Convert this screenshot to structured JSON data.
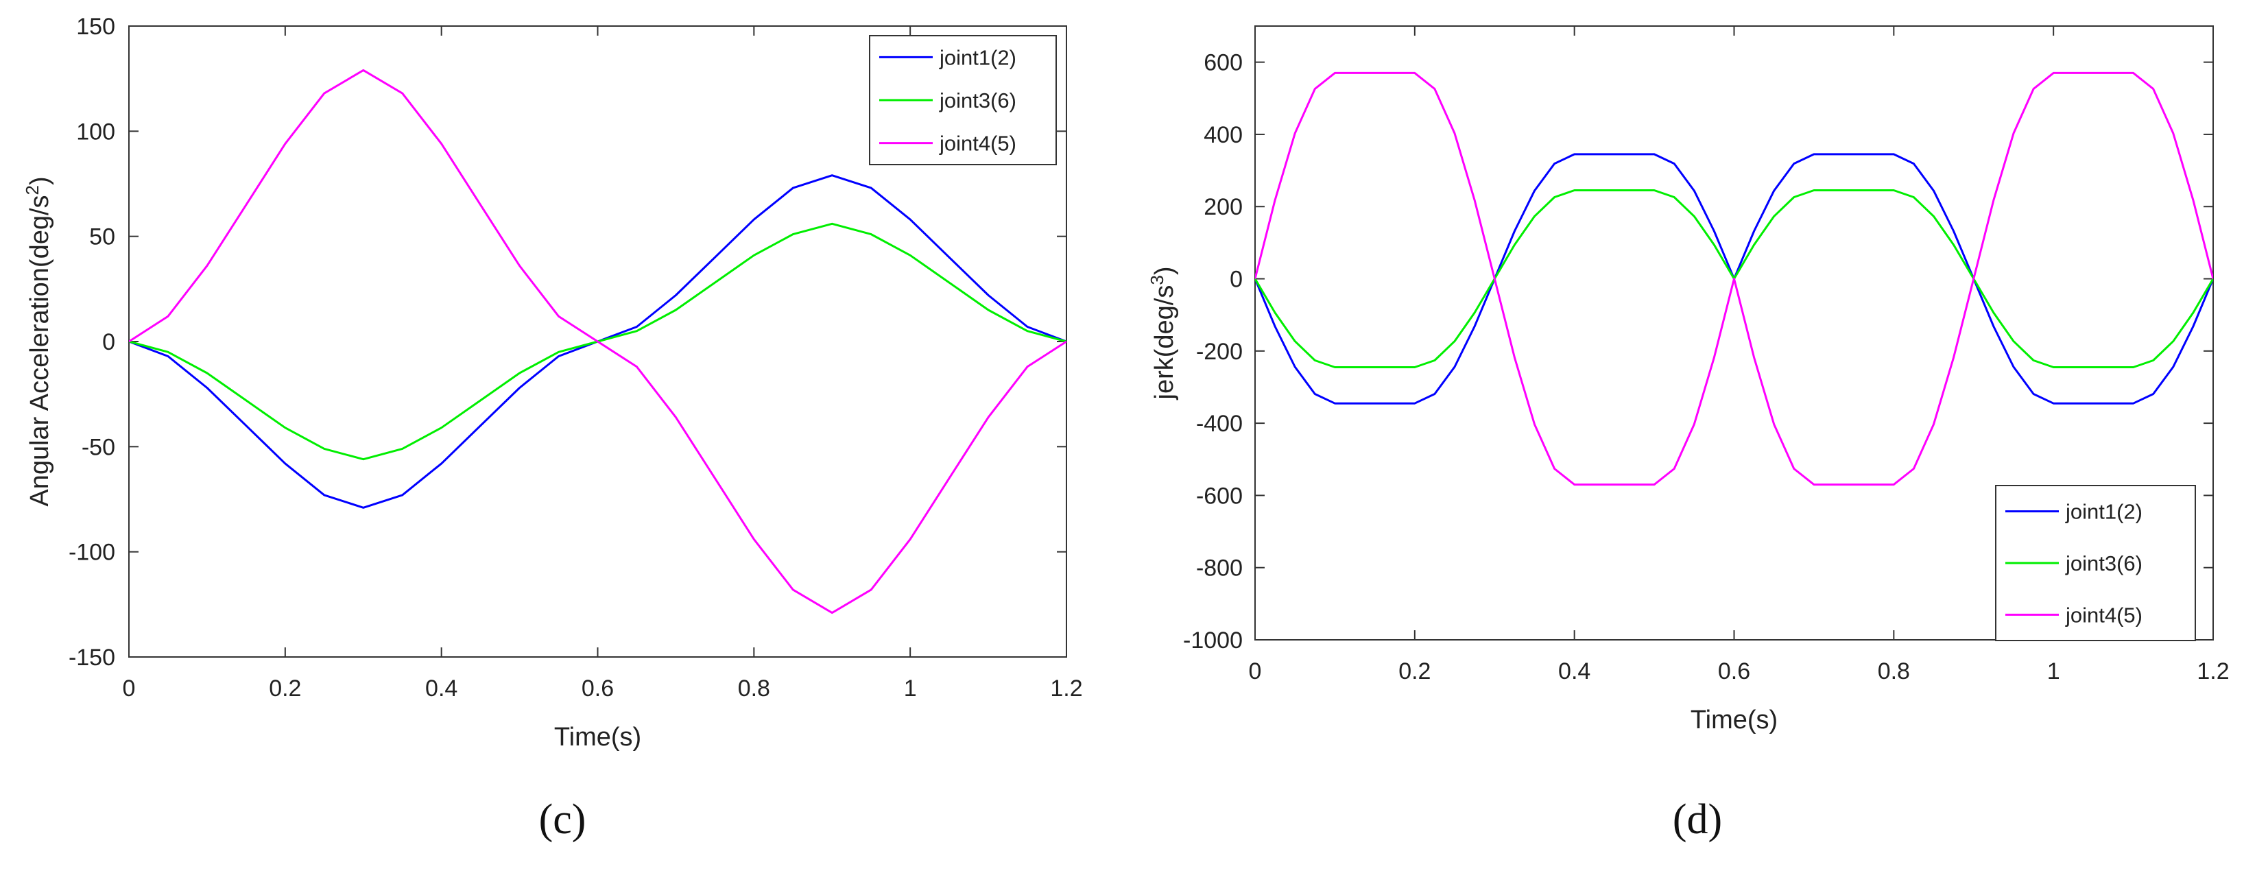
{
  "chart_data": [
    {
      "type": "line",
      "panel_label": "(c)",
      "title": "",
      "xlabel": "Time(s)",
      "ylabel": "Angular Acceleration(deg/s",
      "ylabel_sup": "2",
      "ylabel_tail": ")",
      "xlim": [
        0,
        1.2
      ],
      "ylim": [
        -150,
        150
      ],
      "xticks": [
        0,
        0.2,
        0.4,
        0.6,
        0.8,
        1,
        1.2
      ],
      "xtick_labels": [
        "0",
        "0.2",
        "0.4",
        "0.6",
        "0.8",
        "1",
        "1.2"
      ],
      "yticks": [
        -150,
        -100,
        -50,
        0,
        50,
        100,
        150
      ],
      "ytick_labels": [
        "-150",
        "-100",
        "-50",
        "0",
        "50",
        "100",
        "150"
      ],
      "grid": false,
      "legend_position": "top-right",
      "series": [
        {
          "name": "joint1(2)",
          "color": "#0000ff",
          "x": [
            0,
            0.05,
            0.1,
            0.15,
            0.2,
            0.25,
            0.3,
            0.35,
            0.4,
            0.45,
            0.5,
            0.55,
            0.6,
            0.65,
            0.7,
            0.75,
            0.8,
            0.85,
            0.9,
            0.95,
            1.0,
            1.05,
            1.1,
            1.15,
            1.2
          ],
          "values": [
            0,
            -7,
            -22,
            -40,
            -58,
            -73,
            -79,
            -73,
            -58,
            -40,
            -22,
            -7,
            0,
            7,
            22,
            40,
            58,
            73,
            79,
            73,
            58,
            40,
            22,
            7,
            0
          ]
        },
        {
          "name": "joint3(6)",
          "color": "#00ee00",
          "x": [
            0,
            0.05,
            0.1,
            0.15,
            0.2,
            0.25,
            0.3,
            0.35,
            0.4,
            0.45,
            0.5,
            0.55,
            0.6,
            0.65,
            0.7,
            0.75,
            0.8,
            0.85,
            0.9,
            0.95,
            1.0,
            1.05,
            1.1,
            1.15,
            1.2
          ],
          "values": [
            0,
            -5,
            -15,
            -28,
            -41,
            -51,
            -56,
            -51,
            -41,
            -28,
            -15,
            -5,
            0,
            5,
            15,
            28,
            41,
            51,
            56,
            51,
            41,
            28,
            15,
            5,
            0
          ]
        },
        {
          "name": "joint4(5)",
          "color": "#ff00ff",
          "x": [
            0,
            0.05,
            0.1,
            0.15,
            0.2,
            0.25,
            0.3,
            0.35,
            0.4,
            0.45,
            0.5,
            0.55,
            0.6,
            0.65,
            0.7,
            0.75,
            0.8,
            0.85,
            0.9,
            0.95,
            1.0,
            1.05,
            1.1,
            1.15,
            1.2
          ],
          "values": [
            0,
            12,
            36,
            65,
            94,
            118,
            129,
            118,
            94,
            65,
            36,
            12,
            0,
            -12,
            -36,
            -65,
            -94,
            -118,
            -129,
            -118,
            -94,
            -65,
            -36,
            -12,
            0
          ]
        }
      ]
    },
    {
      "type": "line",
      "panel_label": "(d)",
      "title": "",
      "xlabel": "Time(s)",
      "ylabel": "jerk(deg/s",
      "ylabel_sup": "3",
      "ylabel_tail": ")",
      "xlim": [
        0,
        1.2
      ],
      "ylim": [
        -1000,
        700
      ],
      "xticks": [
        0,
        0.2,
        0.4,
        0.6,
        0.8,
        1,
        1.2
      ],
      "xtick_labels": [
        "0",
        "0.2",
        "0.4",
        "0.6",
        "0.8",
        "1",
        "1.2"
      ],
      "yticks": [
        -1000,
        -800,
        -600,
        -400,
        -200,
        0,
        200,
        400,
        600
      ],
      "ytick_labels": [
        "-1000",
        "-800",
        "-600",
        "-400",
        "-200",
        "0",
        "200",
        "400",
        "600"
      ],
      "grid": false,
      "legend_position": "bottom-right",
      "series": [
        {
          "name": "joint1(2)",
          "color": "#0000ff",
          "x": [
            0,
            0.025,
            0.05,
            0.075,
            0.1,
            0.2,
            0.225,
            0.25,
            0.275,
            0.3,
            0.325,
            0.35,
            0.375,
            0.4,
            0.5,
            0.525,
            0.55,
            0.575,
            0.6,
            0.625,
            0.65,
            0.675,
            0.7,
            0.8,
            0.825,
            0.85,
            0.875,
            0.9,
            0.925,
            0.95,
            0.975,
            1.0,
            1.1,
            1.125,
            1.15,
            1.175,
            1.2
          ],
          "values": [
            0,
            -132,
            -244,
            -319,
            -345,
            -345,
            -319,
            -244,
            -132,
            0,
            132,
            244,
            319,
            345,
            345,
            319,
            244,
            132,
            0,
            132,
            244,
            319,
            345,
            345,
            319,
            244,
            132,
            0,
            -132,
            -244,
            -319,
            -345,
            -345,
            -319,
            -244,
            -132,
            0
          ]
        },
        {
          "name": "joint3(6)",
          "color": "#00ee00",
          "x": [
            0,
            0.025,
            0.05,
            0.075,
            0.1,
            0.2,
            0.225,
            0.25,
            0.275,
            0.3,
            0.325,
            0.35,
            0.375,
            0.4,
            0.5,
            0.525,
            0.55,
            0.575,
            0.6,
            0.625,
            0.65,
            0.675,
            0.7,
            0.8,
            0.825,
            0.85,
            0.875,
            0.9,
            0.925,
            0.95,
            0.975,
            1.0,
            1.1,
            1.125,
            1.15,
            1.175,
            1.2
          ],
          "values": [
            0,
            -94,
            -173,
            -226,
            -245,
            -245,
            -226,
            -173,
            -94,
            0,
            94,
            173,
            226,
            245,
            245,
            226,
            173,
            94,
            0,
            94,
            173,
            226,
            245,
            245,
            226,
            173,
            94,
            0,
            -94,
            -173,
            -226,
            -245,
            -245,
            -226,
            -173,
            -94,
            0
          ]
        },
        {
          "name": "joint4(5)",
          "color": "#ff00ff",
          "x": [
            0,
            0.025,
            0.05,
            0.075,
            0.1,
            0.2,
            0.225,
            0.25,
            0.275,
            0.3,
            0.325,
            0.35,
            0.375,
            0.4,
            0.5,
            0.525,
            0.55,
            0.575,
            0.6,
            0.625,
            0.65,
            0.675,
            0.7,
            0.8,
            0.825,
            0.85,
            0.875,
            0.9,
            0.925,
            0.95,
            0.975,
            1.0,
            1.1,
            1.125,
            1.15,
            1.175,
            1.2
          ],
          "values": [
            0,
            218,
            403,
            526,
            570,
            570,
            526,
            403,
            218,
            0,
            -218,
            -403,
            -526,
            -570,
            -570,
            -526,
            -403,
            -218,
            0,
            -218,
            -403,
            -526,
            -570,
            -570,
            -526,
            -403,
            -218,
            0,
            218,
            403,
            526,
            570,
            570,
            526,
            403,
            218,
            0
          ]
        }
      ]
    }
  ]
}
